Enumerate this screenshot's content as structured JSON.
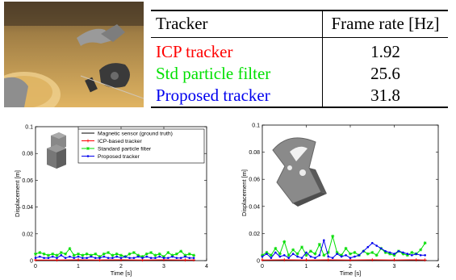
{
  "table": {
    "headers": [
      "Tracker",
      "Frame rate [Hz]"
    ],
    "rows": [
      {
        "tracker": "ICP tracker",
        "rate": "1.92",
        "color": "#ff0000"
      },
      {
        "tracker": "Std particle filter",
        "rate": "25.6",
        "color": "#00e000"
      },
      {
        "tracker": "Proposed tracker",
        "rate": "31.8",
        "color": "#0000ee"
      }
    ]
  },
  "chart_data": [
    {
      "type": "line",
      "xlabel": "Time [s]",
      "ylabel": "Displacement [m]",
      "xlim": [
        0,
        4
      ],
      "ylim": [
        0,
        0.1
      ],
      "xticks": [
        "0",
        "1",
        "2",
        "3",
        "4"
      ],
      "yticks": [
        "0",
        "0.02",
        "0.04",
        "0.06",
        "0.08",
        "0.1"
      ],
      "legend_position": "top-right",
      "series": [
        {
          "name": "Magnetic sensor (ground truth)",
          "color": "#000000",
          "marker": "none",
          "x": [
            0,
            0.5,
            1,
            1.5,
            2,
            2.5,
            3,
            3.5,
            3.7
          ],
          "y": [
            0,
            0,
            0,
            0,
            0,
            0,
            0,
            0,
            0
          ]
        },
        {
          "name": "ICP-based tracker",
          "color": "#ff0000",
          "marker": "plus",
          "x": [
            0,
            0.5,
            1,
            1.5,
            2,
            2.5,
            3,
            3.5,
            3.7
          ],
          "y": [
            0.0005,
            0.0005,
            0.0006,
            0.0005,
            0.0006,
            0.0005,
            0.0006,
            0.0005,
            0.0005
          ]
        },
        {
          "name": "Standard particle filter",
          "color": "#00dd00",
          "marker": "star",
          "x": [
            0,
            0.1,
            0.2,
            0.3,
            0.4,
            0.5,
            0.6,
            0.7,
            0.8,
            0.9,
            1.0,
            1.1,
            1.2,
            1.3,
            1.4,
            1.5,
            1.6,
            1.7,
            1.8,
            1.9,
            2.0,
            2.1,
            2.2,
            2.3,
            2.4,
            2.5,
            2.6,
            2.7,
            2.8,
            2.9,
            3.0,
            3.1,
            3.2,
            3.3,
            3.4,
            3.5,
            3.6,
            3.7
          ],
          "y": [
            0.005,
            0.006,
            0.005,
            0.004,
            0.005,
            0.004,
            0.006,
            0.005,
            0.009,
            0.004,
            0.005,
            0.004,
            0.005,
            0.004,
            0.005,
            0.003,
            0.005,
            0.006,
            0.004,
            0.005,
            0.004,
            0.003,
            0.005,
            0.006,
            0.004,
            0.003,
            0.005,
            0.006,
            0.004,
            0.005,
            0.003,
            0.006,
            0.004,
            0.005,
            0.007,
            0.004,
            0.005,
            0.004
          ]
        },
        {
          "name": "Proposed tracker",
          "color": "#0000ee",
          "marker": "dot",
          "x": [
            0,
            0.1,
            0.2,
            0.3,
            0.4,
            0.5,
            0.6,
            0.7,
            0.8,
            0.9,
            1.0,
            1.1,
            1.2,
            1.3,
            1.4,
            1.5,
            1.6,
            1.7,
            1.8,
            1.9,
            2.0,
            2.1,
            2.2,
            2.3,
            2.4,
            2.5,
            2.6,
            2.7,
            2.8,
            2.9,
            3.0,
            3.1,
            3.2,
            3.3,
            3.4,
            3.5,
            3.6,
            3.7
          ],
          "y": [
            0.002,
            0.003,
            0.002,
            0.002,
            0.003,
            0.002,
            0.004,
            0.002,
            0.003,
            0.002,
            0.003,
            0.002,
            0.002,
            0.003,
            0.002,
            0.002,
            0.003,
            0.002,
            0.002,
            0.003,
            0.002,
            0.003,
            0.002,
            0.002,
            0.003,
            0.002,
            0.003,
            0.002,
            0.002,
            0.003,
            0.002,
            0.002,
            0.003,
            0.002,
            0.002,
            0.003,
            0.002,
            0.002
          ]
        }
      ]
    },
    {
      "type": "line",
      "xlabel": "Time [s]",
      "ylabel": "Displacement [m]",
      "xlim": [
        0,
        4
      ],
      "ylim": [
        0,
        0.1
      ],
      "xticks": [
        "0",
        "1",
        "2",
        "3",
        "4"
      ],
      "yticks": [
        "0",
        "0.02",
        "0.04",
        "0.06",
        "0.08",
        "0.1"
      ],
      "series": [
        {
          "name": "Magnetic sensor (ground truth)",
          "color": "#000000",
          "marker": "none",
          "x": [
            0,
            0.5,
            1,
            1.5,
            2,
            2.5,
            3,
            3.5,
            3.7
          ],
          "y": [
            0,
            0,
            0,
            0,
            0,
            0,
            0,
            0,
            0
          ]
        },
        {
          "name": "ICP-based tracker",
          "color": "#ff0000",
          "marker": "plus",
          "x": [
            0,
            0.5,
            1,
            1.5,
            2,
            2.5,
            3,
            3.5,
            3.7
          ],
          "y": [
            0.0005,
            0.0006,
            0.0005,
            0.0006,
            0.0005,
            0.0006,
            0.0005,
            0.0006,
            0.0005
          ]
        },
        {
          "name": "Standard particle filter",
          "color": "#00dd00",
          "marker": "star",
          "x": [
            0,
            0.1,
            0.2,
            0.3,
            0.4,
            0.5,
            0.6,
            0.7,
            0.8,
            0.9,
            1.0,
            1.1,
            1.2,
            1.3,
            1.4,
            1.5,
            1.6,
            1.7,
            1.8,
            1.9,
            2.0,
            2.1,
            2.2,
            2.3,
            2.4,
            2.5,
            2.6,
            2.7,
            2.8,
            2.9,
            3.0,
            3.1,
            3.2,
            3.3,
            3.4,
            3.5,
            3.6,
            3.7
          ],
          "y": [
            0.004,
            0.006,
            0.004,
            0.009,
            0.005,
            0.014,
            0.004,
            0.008,
            0.005,
            0.01,
            0.004,
            0.007,
            0.005,
            0.012,
            0.004,
            0.006,
            0.018,
            0.006,
            0.004,
            0.009,
            0.005,
            0.006,
            0.004,
            0.007,
            0.005,
            0.006,
            0.004,
            0.009,
            0.006,
            0.005,
            0.004,
            0.007,
            0.005,
            0.004,
            0.006,
            0.005,
            0.008,
            0.013
          ]
        },
        {
          "name": "Proposed tracker",
          "color": "#0000ee",
          "marker": "dot",
          "x": [
            0,
            0.1,
            0.2,
            0.3,
            0.4,
            0.5,
            0.6,
            0.7,
            0.8,
            0.9,
            1.0,
            1.1,
            1.2,
            1.3,
            1.4,
            1.5,
            1.6,
            1.7,
            1.8,
            1.9,
            2.0,
            2.1,
            2.2,
            2.3,
            2.4,
            2.5,
            2.6,
            2.7,
            2.8,
            2.9,
            3.0,
            3.1,
            3.2,
            3.3,
            3.4,
            3.5,
            3.6,
            3.7
          ],
          "y": [
            0.003,
            0.005,
            0.002,
            0.006,
            0.003,
            0.004,
            0.002,
            0.005,
            0.003,
            0.002,
            0.006,
            0.003,
            0.002,
            0.004,
            0.015,
            0.003,
            0.002,
            0.005,
            0.003,
            0.004,
            0.002,
            0.003,
            0.004,
            0.007,
            0.01,
            0.013,
            0.011,
            0.009,
            0.007,
            0.006,
            0.005,
            0.007,
            0.006,
            0.005,
            0.004,
            0.005,
            0.004,
            0.004
          ]
        }
      ]
    }
  ]
}
